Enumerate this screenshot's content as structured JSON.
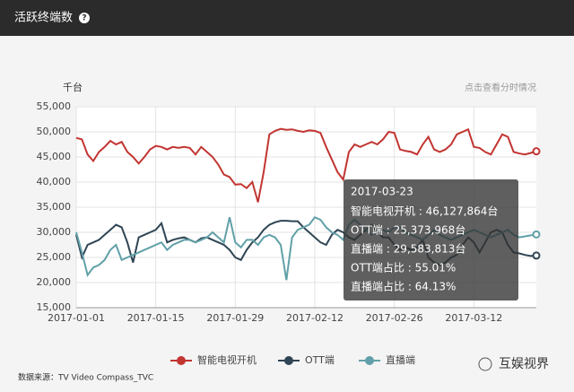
{
  "header": {
    "title": "活跃终端数"
  },
  "unit_label": "千台",
  "link": "点击查看分时情况",
  "tooltip": {
    "date": "2017-03-23",
    "lines": [
      "智能电视开机 : 46,127,864台",
      "OTT端 : 25,373,968台",
      "直播端 : 29,583,813台",
      "OTT端占比 : 55.01%",
      "直播端占比 : 64.13%"
    ]
  },
  "source": "数据来源：TV Video Compass_TVC",
  "watermark": "互娱视界",
  "chart_data": {
    "type": "line",
    "x": [
      "2017-01-01",
      "2017-01-02",
      "2017-01-03",
      "2017-01-04",
      "2017-01-05",
      "2017-01-06",
      "2017-01-07",
      "2017-01-08",
      "2017-01-09",
      "2017-01-10",
      "2017-01-11",
      "2017-01-12",
      "2017-01-13",
      "2017-01-14",
      "2017-01-15",
      "2017-01-16",
      "2017-01-17",
      "2017-01-18",
      "2017-01-19",
      "2017-01-20",
      "2017-01-21",
      "2017-01-22",
      "2017-01-23",
      "2017-01-24",
      "2017-01-25",
      "2017-01-26",
      "2017-01-27",
      "2017-01-28",
      "2017-01-29",
      "2017-01-30",
      "2017-01-31",
      "2017-02-01",
      "2017-02-02",
      "2017-02-03",
      "2017-02-04",
      "2017-02-05",
      "2017-02-06",
      "2017-02-07",
      "2017-02-08",
      "2017-02-09",
      "2017-02-10",
      "2017-02-11",
      "2017-02-12",
      "2017-02-13",
      "2017-02-14",
      "2017-02-15",
      "2017-02-16",
      "2017-02-17",
      "2017-02-18",
      "2017-02-19",
      "2017-02-20",
      "2017-02-21",
      "2017-02-22",
      "2017-02-23",
      "2017-02-24",
      "2017-02-25",
      "2017-02-26",
      "2017-02-27",
      "2017-02-28",
      "2017-03-01",
      "2017-03-02",
      "2017-03-03",
      "2017-03-04",
      "2017-03-05",
      "2017-03-06",
      "2017-03-07",
      "2017-03-08",
      "2017-03-09",
      "2017-03-10",
      "2017-03-11",
      "2017-03-12",
      "2017-03-13",
      "2017-03-14",
      "2017-03-15",
      "2017-03-16",
      "2017-03-17",
      "2017-03-18",
      "2017-03-19",
      "2017-03-20",
      "2017-03-21",
      "2017-03-22",
      "2017-03-23"
    ],
    "xticks": [
      "2017-01-01",
      "2017-01-15",
      "2017-01-29",
      "2017-02-12",
      "2017-02-26",
      "2017-03-12"
    ],
    "ylim": [
      15000,
      55000
    ],
    "yticks": [
      {
        "value": 15000,
        "label": "15,000"
      },
      {
        "value": 20000,
        "label": "20,000"
      },
      {
        "value": 25000,
        "label": "25,000"
      },
      {
        "value": 30000,
        "label": "30,000"
      },
      {
        "value": 35000,
        "label": "35,000"
      },
      {
        "value": 40000,
        "label": "40,000"
      },
      {
        "value": 45000,
        "label": "45,000"
      },
      {
        "value": 50000,
        "label": "50,000"
      },
      {
        "value": 55000,
        "label": "55,000"
      }
    ],
    "grid": true,
    "series": [
      {
        "name": "智能电视开机",
        "color": "#c23531",
        "values": [
          48800,
          48500,
          45500,
          44200,
          46000,
          47000,
          48200,
          47500,
          48000,
          46000,
          45000,
          43700,
          45000,
          46500,
          47200,
          47000,
          46500,
          47000,
          46800,
          47000,
          46800,
          45500,
          47000,
          46000,
          45000,
          43500,
          41500,
          41000,
          39500,
          39600,
          38800,
          40000,
          36000,
          42000,
          49500,
          50200,
          50600,
          50400,
          50500,
          50200,
          50000,
          50300,
          50200,
          49800,
          47000,
          44500,
          42000,
          40500,
          46000,
          47500,
          47000,
          47500,
          48000,
          47500,
          48500,
          50000,
          49800,
          46500,
          46200,
          46000,
          45500,
          47500,
          49000,
          46500,
          46000,
          46500,
          47500,
          49500,
          50000,
          50500,
          47000,
          46800,
          46000,
          45500,
          47500,
          49500,
          49000,
          46000,
          45700,
          45500,
          45800,
          46127.864
        ]
      },
      {
        "name": "OTT端",
        "color": "#2f4554",
        "values": [
          29500,
          25000,
          27500,
          28000,
          28500,
          29500,
          30500,
          31500,
          31000,
          28000,
          24000,
          29000,
          29500,
          30000,
          30500,
          31800,
          28000,
          28500,
          28800,
          29000,
          28500,
          28000,
          28800,
          29000,
          28500,
          28000,
          27500,
          26500,
          25000,
          24500,
          26500,
          28000,
          29000,
          30500,
          31500,
          32000,
          32300,
          32300,
          32200,
          32200,
          31000,
          30000,
          29000,
          28000,
          27500,
          29500,
          30500,
          30000,
          29000,
          28500,
          29500,
          30500,
          31500,
          30000,
          29000,
          29000,
          27500,
          26500,
          27000,
          26500,
          27000,
          28500,
          25000,
          24000,
          23500,
          24000,
          25000,
          25500,
          27500,
          29000,
          28000,
          26000,
          28000,
          30000,
          30500,
          30000,
          27500,
          26000,
          25800,
          25500,
          25300,
          25373.968
        ]
      },
      {
        "name": "直播端",
        "color": "#61a0a8",
        "values": [
          30000,
          26000,
          21500,
          23000,
          23500,
          24500,
          26500,
          27500,
          24500,
          25000,
          25500,
          26000,
          26500,
          27000,
          27500,
          28000,
          26500,
          27500,
          28000,
          28500,
          28500,
          28000,
          28500,
          29000,
          30000,
          29000,
          28000,
          33000,
          28000,
          27000,
          28500,
          28500,
          27500,
          29000,
          29500,
          29000,
          27500,
          20500,
          29000,
          30500,
          31000,
          31500,
          33000,
          32500,
          31000,
          30000,
          29500,
          28500,
          31500,
          32500,
          31500,
          30500,
          29500,
          30000,
          30500,
          30000,
          31000,
          31000,
          30000,
          29500,
          29000,
          28500,
          29500,
          30500,
          29500,
          29000,
          28500,
          29000,
          29500,
          30000,
          30500,
          30000,
          29500,
          29000,
          29500,
          30000,
          30500,
          29500,
          29000,
          29200,
          29400,
          29583.813
        ]
      }
    ]
  }
}
